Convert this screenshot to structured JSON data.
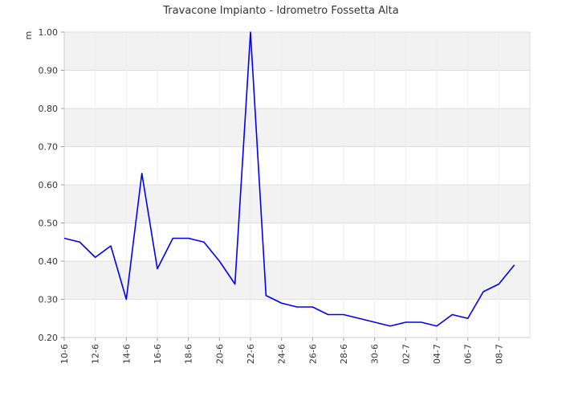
{
  "chart_data": {
    "type": "line",
    "title": "Travacone Impianto - Idrometro Fossetta Alta",
    "xlabel": "",
    "ylabel": "m",
    "ylim": [
      0.2,
      1.0
    ],
    "yticks": [
      "0.20",
      "0.30",
      "0.40",
      "0.50",
      "0.60",
      "0.70",
      "0.80",
      "0.90",
      "1.00"
    ],
    "xticks": [
      "10-6",
      "12-6",
      "14-6",
      "16-6",
      "18-6",
      "20-6",
      "22-6",
      "24-6",
      "26-6",
      "28-6",
      "30-6",
      "02-7",
      "04-7",
      "06-7",
      "08-7"
    ],
    "grid": true,
    "band_colors": [
      "#ffffff",
      "#f2f2f2"
    ],
    "line_color": "#0000ee",
    "x": [
      "10-6",
      "11-6",
      "12-6",
      "13-6",
      "14-6",
      "15-6",
      "16-6",
      "17-6",
      "18-6",
      "19-6",
      "20-6",
      "21-6",
      "22-6",
      "23-6",
      "24-6",
      "25-6",
      "26-6",
      "27-6",
      "28-6",
      "29-6",
      "30-6",
      "01-7",
      "02-7",
      "03-7",
      "04-7",
      "05-7",
      "06-7",
      "07-7",
      "08-7",
      "09-7"
    ],
    "series": [
      {
        "values": [
          0.46,
          0.45,
          0.41,
          0.44,
          0.3,
          0.63,
          0.38,
          0.46,
          0.46,
          0.45,
          0.4,
          0.34,
          1.0,
          0.31,
          0.29,
          0.28,
          0.28,
          0.26,
          0.26,
          0.25,
          0.24,
          0.23,
          0.24,
          0.24,
          0.23,
          0.26,
          0.25,
          0.32,
          0.34,
          0.39
        ]
      }
    ]
  }
}
